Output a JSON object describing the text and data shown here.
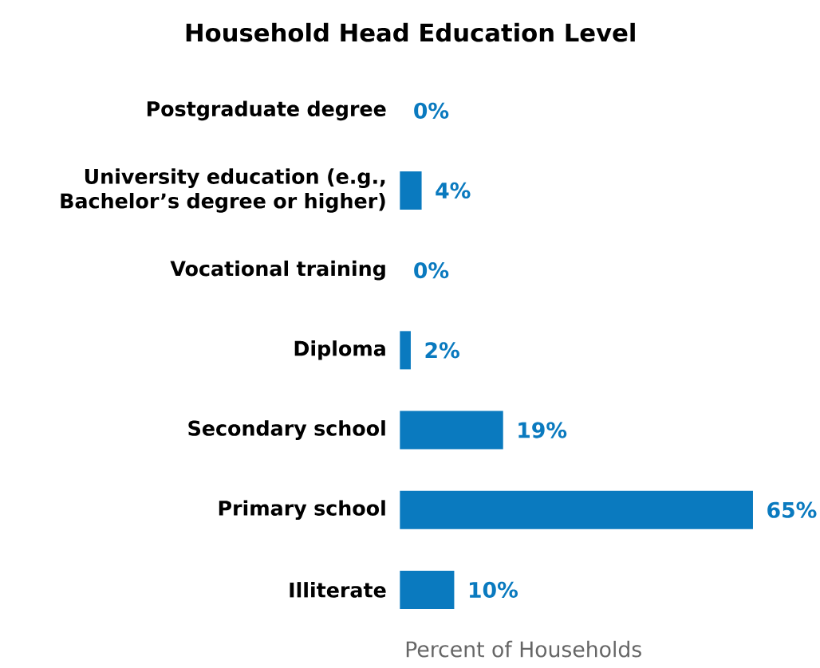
{
  "chart_data": {
    "type": "bar",
    "orientation": "horizontal",
    "title": "Household Head Education Level",
    "xlabel": "Percent of Households",
    "categories": [
      "Postgraduate degree",
      "University education (e.g., Bachelor’s degree or higher)",
      "Vocational training",
      "Diploma",
      "Secondary school",
      "Primary school",
      "Illiterate"
    ],
    "values": [
      0,
      4,
      0,
      2,
      19,
      65,
      10
    ],
    "value_labels": [
      "0%",
      "4%",
      "0%",
      "2%",
      "19%",
      "65%",
      "10%"
    ],
    "color": "#0a7abf"
  }
}
